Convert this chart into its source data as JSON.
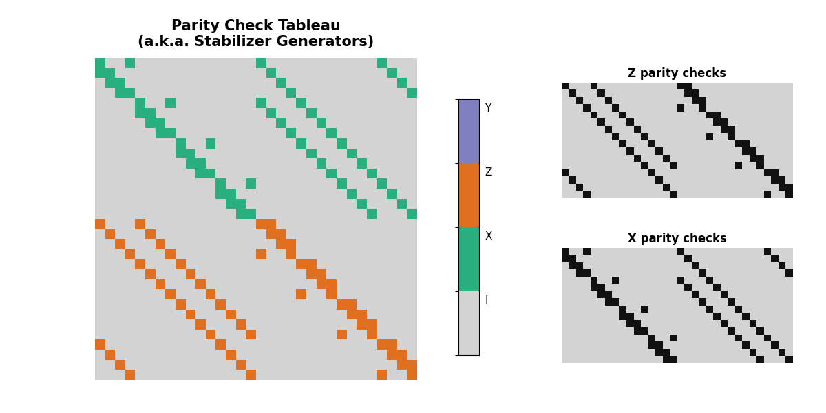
{
  "title": "Parity Check Tableau\n(a.k.a. Stabilizer Generators)",
  "title_fontsize": 15,
  "z_parity_label": "Z parity checks",
  "x_parity_label": "X parity checks",
  "background_color": "#ffffff",
  "matrix_bg": "#d3d3d3",
  "teal_color": "#2ab07f",
  "orange_color": "#e07020",
  "purple_color": "#8080c0",
  "black_color": "#111111",
  "L": 4,
  "colorbar_colors": [
    "#d3d3d3",
    "#2ab07f",
    "#e07020",
    "#8080c0"
  ],
  "colorbar_labels": [
    "I",
    "X",
    "Z",
    "Y"
  ]
}
